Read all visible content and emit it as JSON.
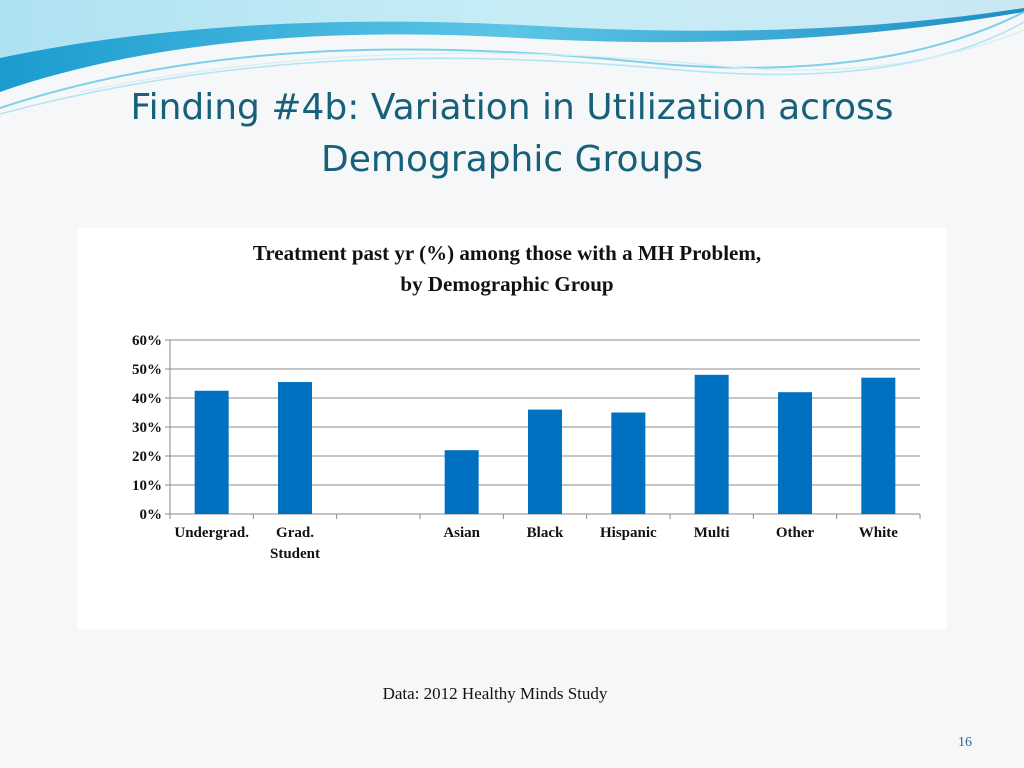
{
  "slide": {
    "title_line1": "Finding #4b: Variation in Utilization across",
    "title_line2": "Demographic Groups",
    "source": "Data: 2012 Healthy Minds Study",
    "page_number": "16"
  },
  "colors": {
    "title": "#17607a",
    "bar": "#0070c0",
    "wave_dark": "#2aa7d6",
    "wave_light": "#a9e2f1"
  },
  "chart_data": {
    "type": "bar",
    "title_line1": "Treatment past yr (%) among those with a MH Problem,",
    "title_line2": "by Demographic Group",
    "categories": [
      "Undergrad.",
      "Grad.\nStudent",
      "",
      "Asian",
      "Black",
      "Hispanic",
      "Multi",
      "Other",
      "White"
    ],
    "values": [
      42.5,
      45.5,
      null,
      22,
      36,
      35,
      48,
      42,
      47
    ],
    "y_ticks": [
      "0%",
      "10%",
      "20%",
      "30%",
      "40%",
      "50%",
      "60%"
    ],
    "ylim": [
      0,
      60
    ],
    "grid": true,
    "legend": "none",
    "xlabel": "",
    "ylabel": ""
  }
}
